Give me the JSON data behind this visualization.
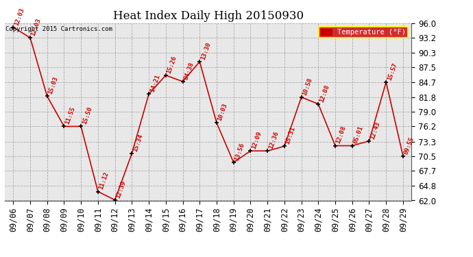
{
  "title": "Heat Index Daily High 20150930",
  "copyright_text": "Copyright 2015 Cartronics.com",
  "legend_label": "Temperature (°F)",
  "dates": [
    "09/06",
    "09/07",
    "09/08",
    "09/09",
    "09/10",
    "09/11",
    "09/12",
    "09/13",
    "09/14",
    "09/15",
    "09/16",
    "09/17",
    "09/18",
    "09/19",
    "09/20",
    "09/21",
    "09/22",
    "09/23",
    "09/24",
    "09/25",
    "09/26",
    "09/27",
    "09/28",
    "09/29"
  ],
  "values": [
    95.2,
    93.2,
    82.0,
    76.2,
    76.2,
    63.7,
    62.1,
    71.0,
    82.4,
    86.0,
    84.8,
    88.6,
    76.9,
    69.3,
    71.5,
    71.5,
    72.4,
    81.8,
    80.5,
    72.5,
    72.5,
    73.4,
    84.7,
    70.5
  ],
  "point_labels": [
    "12:03",
    "12:03",
    "15:03",
    "11:55",
    "15:50",
    "11:12",
    "12:39",
    "15:34",
    "14:21",
    "15:26",
    "84:38",
    "13:30",
    "10:03",
    "13:56",
    "12:09",
    "12:36",
    "15:31",
    "10:58",
    "12:08",
    "12:08",
    "05:01",
    "12:43",
    "15:57",
    "09:55"
  ],
  "ylim_min": 62.0,
  "ylim_max": 96.0,
  "yticks": [
    62.0,
    64.8,
    67.7,
    70.5,
    73.3,
    76.2,
    79.0,
    81.8,
    84.7,
    87.5,
    90.3,
    93.2,
    96.0
  ],
  "line_color": "#cc0000",
  "marker_color": "#000000",
  "bg_color": "#ffffff",
  "plot_bg_color": "#e8e8e8",
  "grid_color": "#999999",
  "label_color": "#cc0000",
  "legend_bg": "#cc0000",
  "legend_text_color": "#ffffff",
  "title_fontsize": 12,
  "label_fontsize": 6.5,
  "tick_fontsize": 8.5
}
